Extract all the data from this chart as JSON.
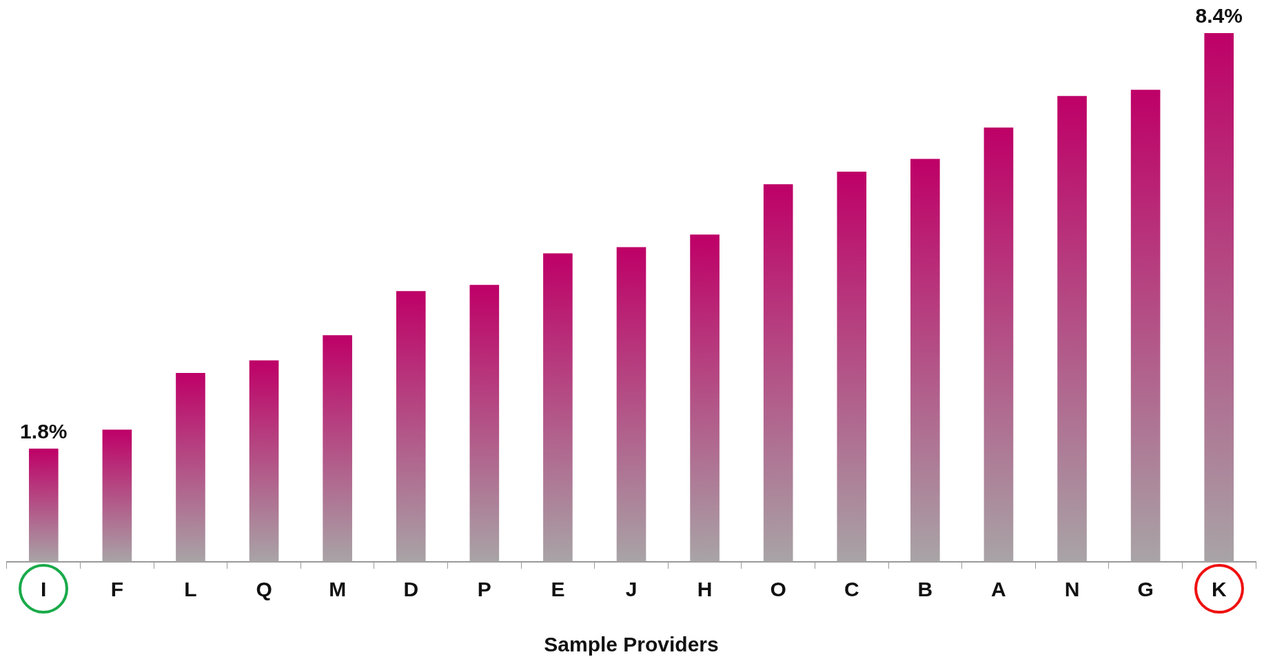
{
  "chart_data": {
    "type": "bar",
    "xlabel": "Sample Providers",
    "categories": [
      "I",
      "F",
      "L",
      "Q",
      "M",
      "D",
      "P",
      "E",
      "J",
      "H",
      "O",
      "C",
      "B",
      "A",
      "N",
      "G",
      "K"
    ],
    "values": [
      1.8,
      2.1,
      3.0,
      3.2,
      3.6,
      4.3,
      4.4,
      4.9,
      5.0,
      5.2,
      6.0,
      6.2,
      6.4,
      6.9,
      7.4,
      7.5,
      8.4
    ],
    "value_labels": [
      "1.8%",
      null,
      null,
      null,
      null,
      null,
      null,
      null,
      null,
      null,
      null,
      null,
      null,
      null,
      null,
      null,
      "8.4%"
    ],
    "color": "#be0067",
    "grid": false,
    "legend": false
  }
}
